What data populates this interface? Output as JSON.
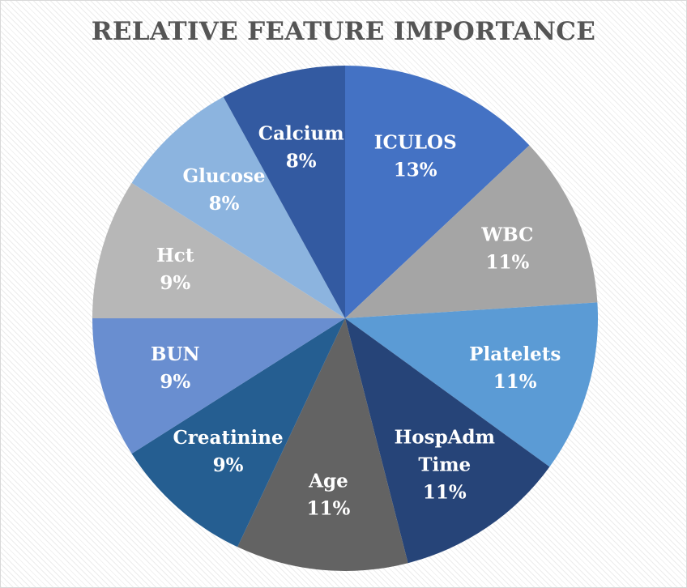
{
  "chart_data": {
    "type": "pie",
    "title": "RELATIVE FEATURE IMPORTANCE",
    "slices": [
      {
        "label": [
          "ICULOS"
        ],
        "value": 13,
        "display": "13%",
        "color": "#4472c4"
      },
      {
        "label": [
          "WBC"
        ],
        "value": 11,
        "display": "11%",
        "color": "#a5a5a5"
      },
      {
        "label": [
          "Platelets"
        ],
        "value": 11,
        "display": "11%",
        "color": "#5b9bd5"
      },
      {
        "label": [
          "HospAdm",
          "Time"
        ],
        "value": 11,
        "display": "11%",
        "color": "#264478"
      },
      {
        "label": [
          "Age"
        ],
        "value": 11,
        "display": "11%",
        "color": "#636363"
      },
      {
        "label": [
          "Creatinine"
        ],
        "value": 9,
        "display": "9%",
        "color": "#255e91"
      },
      {
        "label": [
          "BUN"
        ],
        "value": 9,
        "display": "9%",
        "color": "#698ed0"
      },
      {
        "label": [
          "Hct"
        ],
        "value": 9,
        "display": "9%",
        "color": "#b7b7b7"
      },
      {
        "label": [
          "Glucose"
        ],
        "value": 8,
        "display": "8%",
        "color": "#8cb4df"
      },
      {
        "label": [
          "Calcium"
        ],
        "value": 8,
        "display": "8%",
        "color": "#335aa1"
      }
    ],
    "start_angle_deg": 0,
    "direction": "clockwise",
    "legend": "none",
    "data_labels": "category and percentage inside slices"
  }
}
